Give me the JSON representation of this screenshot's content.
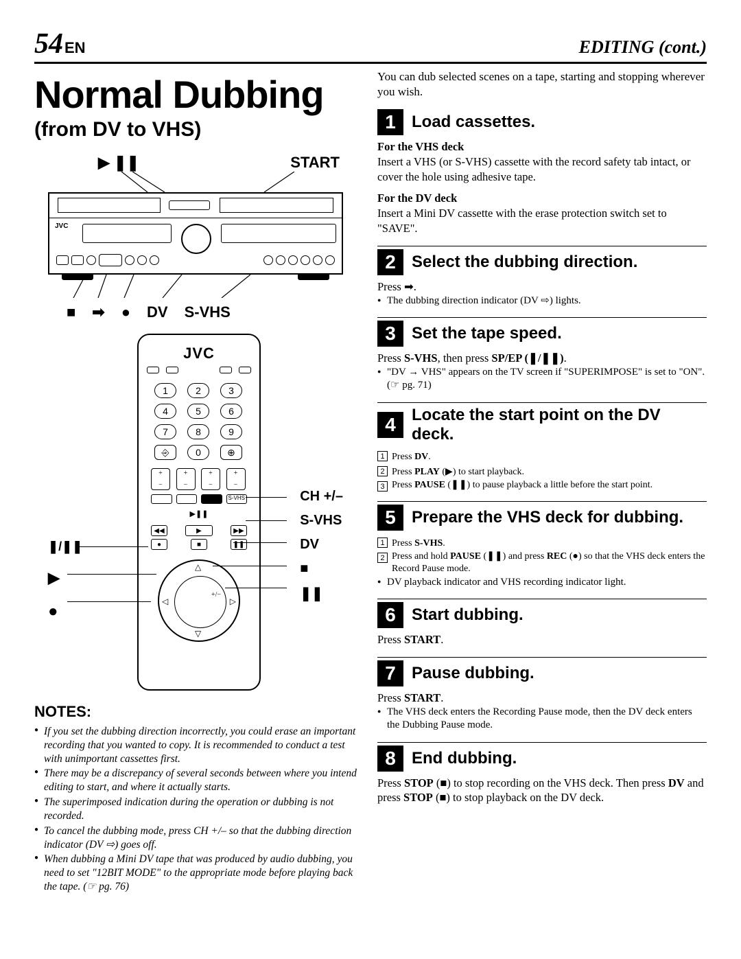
{
  "header": {
    "page_number": "54",
    "lang": "EN",
    "section": "EDITING (cont.)"
  },
  "left": {
    "title": "Normal Dubbing",
    "subtitle": "(from DV to VHS)",
    "diagram_top": {
      "play_pause": "▶ ❚❚",
      "start": "START"
    },
    "diagram_bottom": {
      "stop": "■",
      "arrow": "➡",
      "rec": "●",
      "dv": "DV",
      "svhs": "S-VHS"
    },
    "remote_brand": "JVC",
    "remote_left_labels": {
      "spep": "❚/❚❚",
      "play": "▶",
      "rec": "●"
    },
    "remote_right_labels": {
      "ch": "CH +/–",
      "svhs": "S-VHS",
      "dv": "DV",
      "stop": "■",
      "pause": "❚❚"
    },
    "notes_title": "NOTES:",
    "notes": [
      "If you set the dubbing direction incorrectly, you could erase an important recording that you wanted to copy. It is recommended to conduct a test with unimportant cassettes first.",
      "There may be a discrepancy of several seconds between where you intend editing to start, and where it actually starts.",
      "The superimposed indication during the operation or dubbing is not recorded.",
      "To cancel the dubbing mode, press CH +/– so that the dubbing direction indicator (DV ⇨) goes off.",
      "When dubbing a Mini DV tape that was produced by audio dubbing, you need to set \"12BIT MODE\" to the appropriate mode before playing back the tape. (☞ pg. 76)"
    ]
  },
  "right": {
    "intro": "You can dub selected scenes on a tape, starting and stopping wherever you wish.",
    "steps": [
      {
        "num": "1",
        "title": "Load cassettes.",
        "subs": [
          {
            "head": "For the VHS deck",
            "text": "Insert a VHS (or S-VHS) cassette with the record safety tab intact, or cover the hole using adhesive tape."
          },
          {
            "head": "For the DV deck",
            "text": "Insert a Mini DV cassette with the erase protection switch set to \"SAVE\"."
          }
        ]
      },
      {
        "num": "2",
        "title": "Select the dubbing direction.",
        "body": "Press ➡.",
        "bullets": [
          "The dubbing direction indicator (DV ⇨) lights."
        ]
      },
      {
        "num": "3",
        "title": "Set the tape speed.",
        "body_html": "Press <b>S-VHS</b>, then press <b>SP/EP (❚/❚❚)</b>.",
        "bullets": [
          "\"DV → VHS\" appears on the TV screen if \"SUPERIMPOSE\" is set to \"ON\". (☞ pg. 71)"
        ]
      },
      {
        "num": "4",
        "title": "Locate the start point on the DV deck.",
        "boxed": [
          "Press <b>DV</b>.",
          "Press <b>PLAY</b> (▶) to start playback.",
          "Press <b>PAUSE</b> (❚❚) to pause playback a little before the start point."
        ]
      },
      {
        "num": "5",
        "title": "Prepare the VHS deck for dubbing.",
        "boxed": [
          "Press <b>S-VHS</b>.",
          "Press and hold <b>PAUSE</b> (❚❚) and press <b>REC</b> (●) so that the VHS deck enters the Record Pause mode."
        ],
        "bullets": [
          "DV playback indicator and VHS recording indicator light."
        ]
      },
      {
        "num": "6",
        "title": "Start dubbing.",
        "body_html": "Press <b>START</b>."
      },
      {
        "num": "7",
        "title": "Pause dubbing.",
        "body_html": "Press <b>START</b>.",
        "bullets": [
          "The VHS deck enters the Recording Pause mode, then the DV deck enters the Dubbing Pause mode."
        ]
      },
      {
        "num": "8",
        "title": "End dubbing.",
        "body_html": "Press <b>STOP</b> (■) to stop recording on the VHS deck. Then press <b>DV</b> and press <b>STOP</b> (■) to stop playback on the DV deck."
      }
    ]
  },
  "colors": {
    "text": "#000000",
    "bg": "#ffffff"
  }
}
